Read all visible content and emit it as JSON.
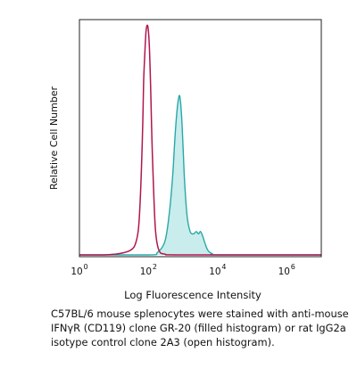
{
  "chart_data": {
    "type": "area",
    "title": "",
    "xlabel": "Log Fluorescence Intensity",
    "ylabel": "Relative Cell Number",
    "x_scale": "log",
    "xlim": [
      1,
      10000000
    ],
    "ylim": [
      0,
      1
    ],
    "x_ticks": [
      {
        "base": "10",
        "exp": "0",
        "value": 1
      },
      {
        "base": "10",
        "exp": "2",
        "value": 100
      },
      {
        "base": "10",
        "exp": "4",
        "value": 10000
      },
      {
        "base": "10",
        "exp": "6",
        "value": 1000000
      }
    ],
    "grid": false,
    "series": [
      {
        "style": "open",
        "color": "#b0174f",
        "x": [
          1,
          5,
          12,
          20,
          30,
          40,
          50,
          56,
          62,
          68,
          72,
          78,
          85,
          95,
          105,
          115,
          125,
          140,
          160,
          200,
          300,
          1000,
          10000000
        ],
        "y": [
          0,
          0,
          0.004,
          0.01,
          0.02,
          0.04,
          0.1,
          0.2,
          0.36,
          0.56,
          0.74,
          0.86,
          0.96,
          0.98,
          0.9,
          0.72,
          0.5,
          0.28,
          0.1,
          0.02,
          0.003,
          0,
          0
        ]
      },
      {
        "style": "filled",
        "color": "#2aa8a8",
        "fill": "#c9ecec",
        "x": [
          1,
          100,
          180,
          300,
          400,
          500,
          580,
          650,
          720,
          800,
          900,
          1000,
          1100,
          1300,
          1600,
          2000,
          2400,
          2800,
          3200,
          3700,
          4300,
          5200,
          7000,
          12000,
          10000000
        ],
        "y": [
          0,
          0,
          0.01,
          0.06,
          0.18,
          0.34,
          0.5,
          0.6,
          0.66,
          0.68,
          0.6,
          0.46,
          0.32,
          0.17,
          0.1,
          0.09,
          0.1,
          0.09,
          0.1,
          0.08,
          0.05,
          0.02,
          0.005,
          0,
          0
        ]
      }
    ]
  },
  "caption": {
    "lines": [
      "C57BL/6 mouse splenocytes were stained with anti-mouse",
      "IFNγR (CD119) clone GR-20 (filled histogram) or rat IgG2a",
      "isotype control clone 2A3 (open histogram)."
    ]
  }
}
